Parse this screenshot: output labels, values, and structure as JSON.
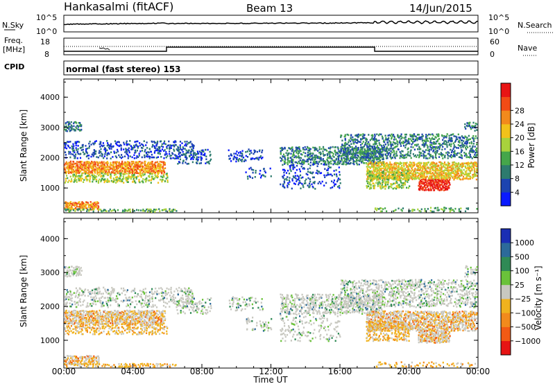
{
  "header": {
    "station": "Hankasalmi (fitACF)",
    "beam": "Beam 13",
    "date": "14/Jun/2015"
  },
  "top_panels": {
    "nsky_label": "N.Sky",
    "nsky_ticks": [
      "10^5",
      "10^0"
    ],
    "nsearch_label": "N.Search",
    "nsearch_ticks": [
      "10^5",
      "10^0"
    ],
    "freq_label_line1": "Freq.",
    "freq_label_line2": "[MHz]",
    "freq_ticks": [
      "18",
      "8"
    ],
    "nave_label": "Nave",
    "nave_ticks": [
      "60",
      "0"
    ],
    "cpid_label": "CPID",
    "cpid_text": "normal (fast stereo) 153"
  },
  "chart_data": [
    {
      "type": "heatmap",
      "name": "power-panel",
      "ylabel": "Slant Range [km]",
      "ylim": [
        180,
        4600
      ],
      "yticks": [
        1000,
        2000,
        3000,
        4000
      ],
      "xlim": [
        0,
        24
      ],
      "colorbar": {
        "label": "Power [dB]",
        "ticks": [
          "4",
          "8",
          "12",
          "16",
          "20",
          "24",
          "28"
        ],
        "colors": [
          "#0a1aff",
          "#1c44b0",
          "#2d7b6e",
          "#45a64a",
          "#a8d23c",
          "#f2c21a",
          "#f28a1c",
          "#f24b16",
          "#e81414"
        ]
      }
    },
    {
      "type": "heatmap",
      "name": "velocity-panel",
      "ylabel": "Slant Range [km]",
      "ylim": [
        180,
        4600
      ],
      "yticks": [
        1000,
        2000,
        3000,
        4000
      ],
      "xlim": [
        0,
        24
      ],
      "xlabel": "Time UT",
      "xticks": [
        "00:00",
        "04:00",
        "08:00",
        "12:00",
        "16:00",
        "20:00",
        "00:00"
      ],
      "colorbar": {
        "label": "Velocity [m s⁻¹]",
        "ticks": [
          "1000",
          "500",
          "100",
          "25",
          "−25",
          "−100",
          "−500",
          "−1000"
        ],
        "colors": [
          "#1a2eb4",
          "#2c6a9a",
          "#2f8a55",
          "#6ac23a",
          "#c8c8c0",
          "#f0b21e",
          "#f28a1c",
          "#f25a14",
          "#e61414"
        ]
      }
    }
  ],
  "echo_bands": [
    {
      "t0": 0.0,
      "t1": 5.8,
      "r0": 1500,
      "r1": 1900,
      "density": 0.9,
      "level": 6
    },
    {
      "t0": 0.0,
      "t1": 6.0,
      "r0": 1200,
      "r1": 1500,
      "density": 0.5,
      "level": 4
    },
    {
      "t0": 0.0,
      "t1": 1.0,
      "r0": 2900,
      "r1": 3200,
      "density": 0.6,
      "level": 2
    },
    {
      "t0": 0.0,
      "t1": 7.5,
      "r0": 2000,
      "r1": 2600,
      "density": 0.35,
      "level": 1
    },
    {
      "t0": 0.0,
      "t1": 2.0,
      "r0": 300,
      "r1": 550,
      "density": 0.8,
      "level": 6
    },
    {
      "t0": 0.0,
      "t1": 6.5,
      "r0": 200,
      "r1": 350,
      "density": 0.5,
      "level": 3
    },
    {
      "t0": 6.5,
      "t1": 8.5,
      "r0": 1800,
      "r1": 2300,
      "density": 0.35,
      "level": 1
    },
    {
      "t0": 9.5,
      "t1": 11.5,
      "r0": 1900,
      "r1": 2300,
      "density": 0.25,
      "level": 1
    },
    {
      "t0": 10.5,
      "t1": 12.0,
      "r0": 1300,
      "r1": 1700,
      "density": 0.2,
      "level": 1
    },
    {
      "t0": 12.5,
      "t1": 18.5,
      "r0": 1800,
      "r1": 2400,
      "density": 0.55,
      "level": 2
    },
    {
      "t0": 12.5,
      "t1": 16.0,
      "r0": 1000,
      "r1": 1800,
      "density": 0.2,
      "level": 1
    },
    {
      "t0": 16.0,
      "t1": 24.0,
      "r0": 2000,
      "r1": 2800,
      "density": 0.45,
      "level": 2
    },
    {
      "t0": 17.5,
      "t1": 24.0,
      "r0": 1300,
      "r1": 1900,
      "density": 0.8,
      "level": 5
    },
    {
      "t0": 20.5,
      "t1": 22.3,
      "r0": 950,
      "r1": 1300,
      "density": 0.9,
      "level": 8
    },
    {
      "t0": 17.5,
      "t1": 20.0,
      "r0": 1000,
      "r1": 1600,
      "density": 0.5,
      "level": 4
    },
    {
      "t0": 23.2,
      "t1": 24.0,
      "r0": 2900,
      "r1": 3200,
      "density": 0.5,
      "level": 2
    },
    {
      "t0": 18.0,
      "t1": 24.0,
      "r0": 200,
      "r1": 400,
      "density": 0.3,
      "level": 3
    }
  ]
}
